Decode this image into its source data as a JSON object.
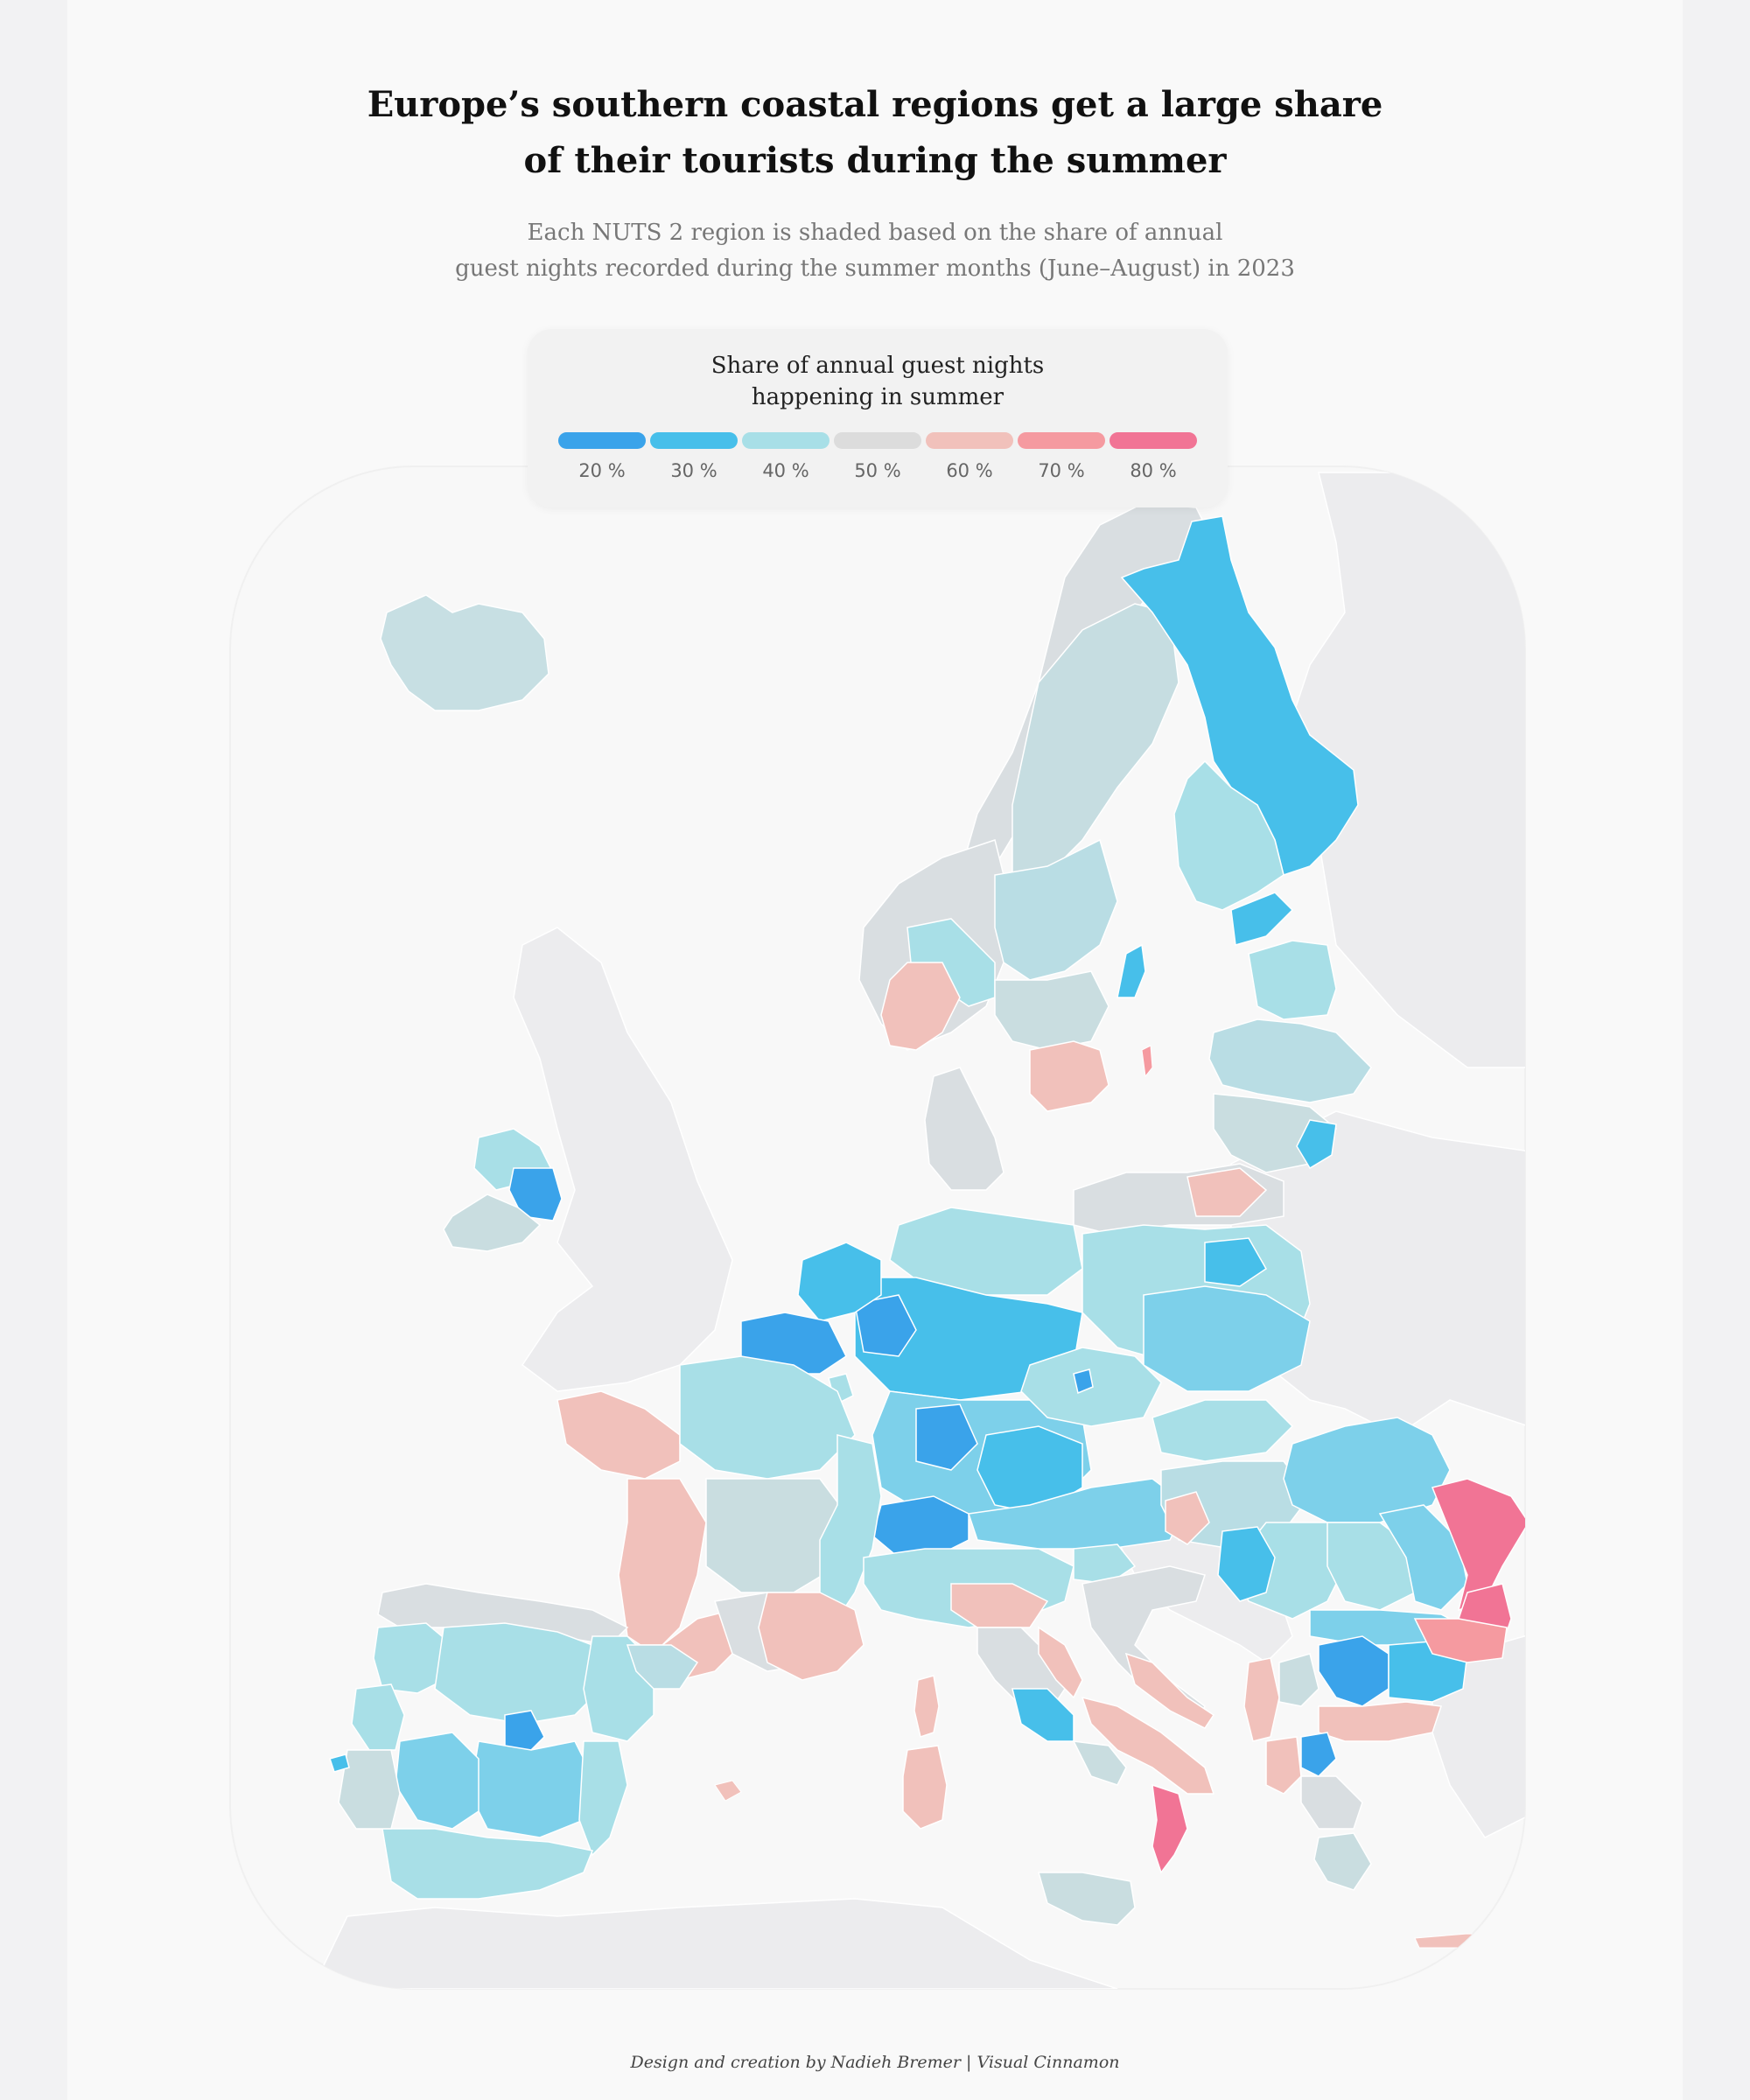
{
  "title": {
    "line1": "Europe’s southern coastal regions get a large share",
    "line2": "of their tourists during the summer"
  },
  "subtitle": {
    "line1": "Each NUTS 2 region is shaded based on the share of annual",
    "line2": "guest nights recorded during the summer months (June–August) in 2023"
  },
  "legend": {
    "title_line1": "Share of annual guest nights",
    "title_line2": "happening in summer",
    "items": [
      {
        "label": "20 %",
        "color": "#3aa3ea"
      },
      {
        "label": "30 %",
        "color": "#47bfea"
      },
      {
        "label": "40 %",
        "color": "#a8dfe7"
      },
      {
        "label": "50 %",
        "color": "#dcdcdc"
      },
      {
        "label": "60 %",
        "color": "#f1c1bb"
      },
      {
        "label": "70 %",
        "color": "#f59aa0"
      },
      {
        "label": "80 %",
        "color": "#f17495"
      }
    ]
  },
  "colors": {
    "background": "#f9f9f9",
    "land_other": "#ececee",
    "region_border": "#ffffff"
  },
  "credit": "Design and creation by Nadieh Bremer | Visual Cinnamon"
}
